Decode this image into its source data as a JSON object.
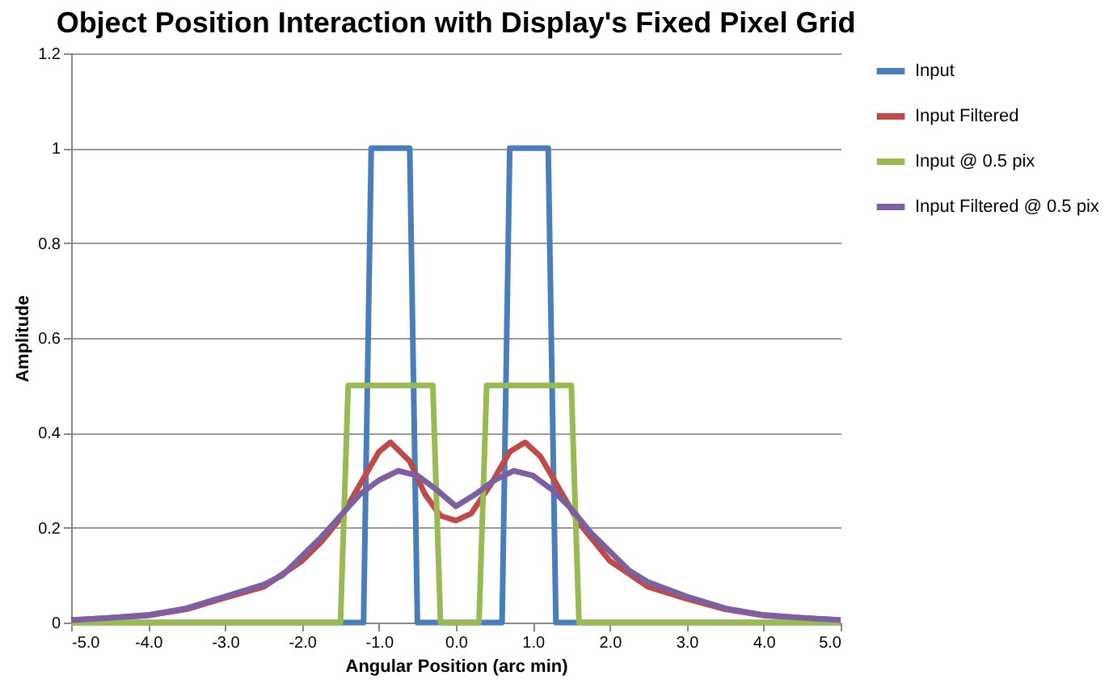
{
  "chart_data": {
    "type": "line",
    "title": "Object Position Interaction with Display's Fixed Pixel Grid",
    "xlabel": "Angular Position (arc min)",
    "ylabel": "Amplitude",
    "xlim": [
      -5,
      5
    ],
    "xticks": [
      {
        "value": -5,
        "label": "-5.0"
      },
      {
        "value": -4,
        "label": "-4.0"
      },
      {
        "value": -3,
        "label": "-3.0"
      },
      {
        "value": -2,
        "label": "-2.0"
      },
      {
        "value": -1,
        "label": "-1.0"
      },
      {
        "value": 0,
        "label": "0.0"
      },
      {
        "value": 1,
        "label": "1.0"
      },
      {
        "value": 2,
        "label": "2.0"
      },
      {
        "value": 3,
        "label": "3.0"
      },
      {
        "value": 4,
        "label": "4.0"
      },
      {
        "value": 5,
        "label": "5.0"
      }
    ],
    "ylim": [
      0,
      1.2
    ],
    "yticks": [
      0,
      0.2,
      0.4,
      0.6,
      0.8,
      1,
      1.2
    ],
    "grid": "y",
    "legend": "right",
    "series": [
      {
        "name": "Input",
        "color": "#4a7ebb",
        "x": [
          -5,
          -1.2,
          -1.1,
          -0.6,
          -0.5,
          0.6,
          0.7,
          1.2,
          1.3,
          5
        ],
        "values": [
          0,
          0,
          1,
          1,
          0,
          0,
          1,
          1,
          0,
          0
        ]
      },
      {
        "name": "Input Filtered",
        "color": "#be4b48",
        "x": [
          -5,
          -4.5,
          -4,
          -3.5,
          -3,
          -2.5,
          -2,
          -1.75,
          -1.5,
          -1.25,
          -1,
          -0.85,
          -0.6,
          -0.4,
          -0.2,
          0,
          0.2,
          0.45,
          0.7,
          0.9,
          1.1,
          1.35,
          1.6,
          1.85,
          2,
          2.5,
          3,
          3.5,
          4,
          4.5,
          5
        ],
        "values": [
          0.005,
          0.01,
          0.015,
          0.028,
          0.052,
          0.075,
          0.13,
          0.17,
          0.22,
          0.29,
          0.36,
          0.38,
          0.34,
          0.27,
          0.225,
          0.215,
          0.23,
          0.29,
          0.36,
          0.38,
          0.35,
          0.28,
          0.21,
          0.16,
          0.13,
          0.075,
          0.05,
          0.028,
          0.015,
          0.01,
          0.005
        ]
      },
      {
        "name": "Input @ 0.5 pix",
        "color": "#98b954",
        "x": [
          -5,
          -1.5,
          -1.4,
          -0.3,
          -0.2,
          0.3,
          0.4,
          1.5,
          1.6,
          5
        ],
        "values": [
          0,
          0,
          0.5,
          0.5,
          0,
          0,
          0.5,
          0.5,
          0,
          0
        ]
      },
      {
        "name": "Input Filtered @ 0.5 pix",
        "color": "#7d60a0",
        "x": [
          -5,
          -4.5,
          -4,
          -3.5,
          -3,
          -2.5,
          -2.25,
          -2,
          -1.75,
          -1.5,
          -1.25,
          -1,
          -0.75,
          -0.5,
          -0.25,
          0,
          0.25,
          0.5,
          0.75,
          1,
          1.25,
          1.5,
          1.75,
          2,
          2.25,
          2.5,
          3,
          3.5,
          4,
          4.5,
          5
        ],
        "values": [
          0.005,
          0.01,
          0.016,
          0.03,
          0.055,
          0.08,
          0.1,
          0.14,
          0.18,
          0.225,
          0.27,
          0.3,
          0.32,
          0.31,
          0.28,
          0.245,
          0.27,
          0.3,
          0.32,
          0.31,
          0.28,
          0.24,
          0.19,
          0.15,
          0.11,
          0.085,
          0.055,
          0.03,
          0.016,
          0.01,
          0.005
        ]
      }
    ]
  }
}
